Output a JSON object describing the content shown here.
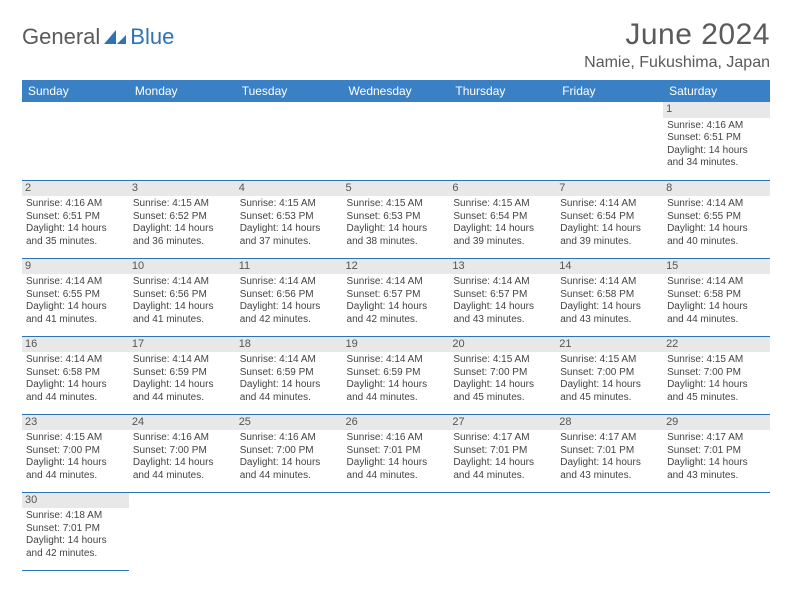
{
  "brand": {
    "part1": "General",
    "part2": "Blue",
    "logo_color": "#2e74b5",
    "text1_color": "#5a5a5a"
  },
  "title": "June 2024",
  "location": "Namie, Fukushima, Japan",
  "colors": {
    "header_bg": "#3a80c4",
    "header_text": "#ffffff",
    "rule": "#2e74b5",
    "daynum_bg": "#e8e8e8",
    "empty_bg": "#f0f0f0"
  },
  "weekdays": [
    "Sunday",
    "Monday",
    "Tuesday",
    "Wednesday",
    "Thursday",
    "Friday",
    "Saturday"
  ],
  "weeks": [
    [
      null,
      null,
      null,
      null,
      null,
      null,
      {
        "n": "1",
        "sunrise": "4:16 AM",
        "sunset": "6:51 PM",
        "daylight": "14 hours and 34 minutes."
      }
    ],
    [
      {
        "n": "2",
        "sunrise": "4:16 AM",
        "sunset": "6:51 PM",
        "daylight": "14 hours and 35 minutes."
      },
      {
        "n": "3",
        "sunrise": "4:15 AM",
        "sunset": "6:52 PM",
        "daylight": "14 hours and 36 minutes."
      },
      {
        "n": "4",
        "sunrise": "4:15 AM",
        "sunset": "6:53 PM",
        "daylight": "14 hours and 37 minutes."
      },
      {
        "n": "5",
        "sunrise": "4:15 AM",
        "sunset": "6:53 PM",
        "daylight": "14 hours and 38 minutes."
      },
      {
        "n": "6",
        "sunrise": "4:15 AM",
        "sunset": "6:54 PM",
        "daylight": "14 hours and 39 minutes."
      },
      {
        "n": "7",
        "sunrise": "4:14 AM",
        "sunset": "6:54 PM",
        "daylight": "14 hours and 39 minutes."
      },
      {
        "n": "8",
        "sunrise": "4:14 AM",
        "sunset": "6:55 PM",
        "daylight": "14 hours and 40 minutes."
      }
    ],
    [
      {
        "n": "9",
        "sunrise": "4:14 AM",
        "sunset": "6:55 PM",
        "daylight": "14 hours and 41 minutes."
      },
      {
        "n": "10",
        "sunrise": "4:14 AM",
        "sunset": "6:56 PM",
        "daylight": "14 hours and 41 minutes."
      },
      {
        "n": "11",
        "sunrise": "4:14 AM",
        "sunset": "6:56 PM",
        "daylight": "14 hours and 42 minutes."
      },
      {
        "n": "12",
        "sunrise": "4:14 AM",
        "sunset": "6:57 PM",
        "daylight": "14 hours and 42 minutes."
      },
      {
        "n": "13",
        "sunrise": "4:14 AM",
        "sunset": "6:57 PM",
        "daylight": "14 hours and 43 minutes."
      },
      {
        "n": "14",
        "sunrise": "4:14 AM",
        "sunset": "6:58 PM",
        "daylight": "14 hours and 43 minutes."
      },
      {
        "n": "15",
        "sunrise": "4:14 AM",
        "sunset": "6:58 PM",
        "daylight": "14 hours and 44 minutes."
      }
    ],
    [
      {
        "n": "16",
        "sunrise": "4:14 AM",
        "sunset": "6:58 PM",
        "daylight": "14 hours and 44 minutes."
      },
      {
        "n": "17",
        "sunrise": "4:14 AM",
        "sunset": "6:59 PM",
        "daylight": "14 hours and 44 minutes."
      },
      {
        "n": "18",
        "sunrise": "4:14 AM",
        "sunset": "6:59 PM",
        "daylight": "14 hours and 44 minutes."
      },
      {
        "n": "19",
        "sunrise": "4:14 AM",
        "sunset": "6:59 PM",
        "daylight": "14 hours and 44 minutes."
      },
      {
        "n": "20",
        "sunrise": "4:15 AM",
        "sunset": "7:00 PM",
        "daylight": "14 hours and 45 minutes."
      },
      {
        "n": "21",
        "sunrise": "4:15 AM",
        "sunset": "7:00 PM",
        "daylight": "14 hours and 45 minutes."
      },
      {
        "n": "22",
        "sunrise": "4:15 AM",
        "sunset": "7:00 PM",
        "daylight": "14 hours and 45 minutes."
      }
    ],
    [
      {
        "n": "23",
        "sunrise": "4:15 AM",
        "sunset": "7:00 PM",
        "daylight": "14 hours and 44 minutes."
      },
      {
        "n": "24",
        "sunrise": "4:16 AM",
        "sunset": "7:00 PM",
        "daylight": "14 hours and 44 minutes."
      },
      {
        "n": "25",
        "sunrise": "4:16 AM",
        "sunset": "7:00 PM",
        "daylight": "14 hours and 44 minutes."
      },
      {
        "n": "26",
        "sunrise": "4:16 AM",
        "sunset": "7:01 PM",
        "daylight": "14 hours and 44 minutes."
      },
      {
        "n": "27",
        "sunrise": "4:17 AM",
        "sunset": "7:01 PM",
        "daylight": "14 hours and 44 minutes."
      },
      {
        "n": "28",
        "sunrise": "4:17 AM",
        "sunset": "7:01 PM",
        "daylight": "14 hours and 43 minutes."
      },
      {
        "n": "29",
        "sunrise": "4:17 AM",
        "sunset": "7:01 PM",
        "daylight": "14 hours and 43 minutes."
      }
    ],
    [
      {
        "n": "30",
        "sunrise": "4:18 AM",
        "sunset": "7:01 PM",
        "daylight": "14 hours and 42 minutes."
      },
      null,
      null,
      null,
      null,
      null,
      null
    ]
  ],
  "labels": {
    "sunrise": "Sunrise:",
    "sunset": "Sunset:",
    "daylight": "Daylight:"
  }
}
